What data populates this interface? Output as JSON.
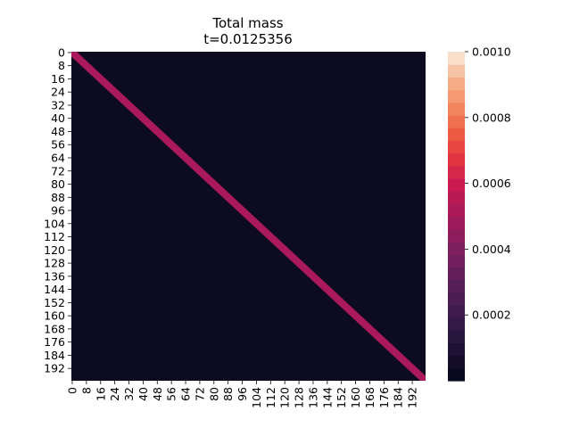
{
  "chart_data": {
    "type": "heatmap",
    "title": "Total mass",
    "subtitle": "t=0.0125356",
    "xlabel": "",
    "ylabel": "",
    "rows": 200,
    "cols": 200,
    "x_tick_labels": [
      "0",
      "8",
      "16",
      "24",
      "32",
      "40",
      "48",
      "56",
      "64",
      "72",
      "80",
      "88",
      "96",
      "104",
      "112",
      "120",
      "128",
      "136",
      "144",
      "152",
      "160",
      "168",
      "176",
      "184",
      "192"
    ],
    "y_tick_labels": [
      "0",
      "8",
      "16",
      "24",
      "32",
      "40",
      "48",
      "56",
      "64",
      "72",
      "80",
      "88",
      "96",
      "104",
      "112",
      "120",
      "128",
      "136",
      "144",
      "152",
      "160",
      "168",
      "176",
      "184",
      "192"
    ],
    "diagonal_band": {
      "half_width_cells": 3,
      "value": 0.00042
    },
    "background_value": 1e-05,
    "value_range": [
      0.0,
      0.001
    ],
    "colorbar": {
      "ticks": [
        0.0002,
        0.0004,
        0.0006,
        0.0008,
        0.001
      ],
      "tick_labels": [
        "0.0002",
        "0.0004",
        "0.0006",
        "0.0008",
        "0.0010"
      ],
      "colormap": "rocket"
    },
    "grid": false
  },
  "colors": {
    "background_cell": "#0d0b20",
    "band_cell": "#a9195b"
  }
}
